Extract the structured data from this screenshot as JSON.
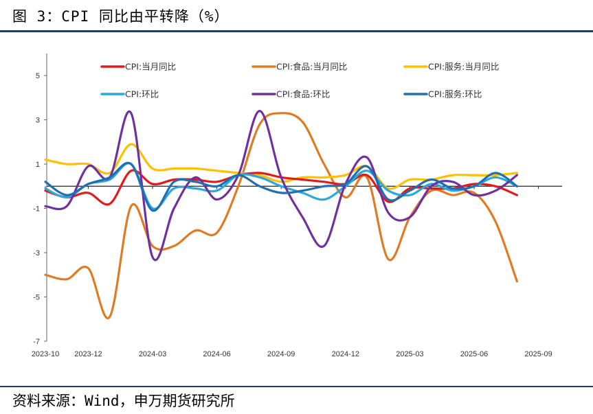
{
  "title": "图 3：CPI 同比由平转降（%）",
  "source": "资料来源：Wind，申万期货研究所",
  "chart_data": {
    "type": "line",
    "title": "图 3：CPI 同比由平转降（%）",
    "xlabel": "",
    "ylabel": "",
    "ylim": [
      -7,
      6
    ],
    "yticks": [
      5,
      3,
      1,
      -1,
      -3,
      -5,
      -7
    ],
    "x_tick_labels": [
      "2023-10",
      "2023-12",
      "2024-03",
      "2024-06",
      "2024-09",
      "2024-12",
      "2025-03",
      "2025-06",
      "2025-09"
    ],
    "x": [
      "2023-10",
      "2023-11",
      "2023-12",
      "2024-01",
      "2024-02",
      "2024-03",
      "2024-04",
      "2024-05",
      "2024-06",
      "2024-07",
      "2024-08",
      "2024-09",
      "2024-10",
      "2024-11",
      "2024-12",
      "2025-01",
      "2025-02",
      "2025-03",
      "2025-04",
      "2025-05",
      "2025-06",
      "2025-07",
      "2025-08"
    ],
    "grid": false,
    "legend_position": "top",
    "series": [
      {
        "name": "CPI:当月同比",
        "color": "#e31a1c",
        "values": [
          -0.2,
          -0.5,
          -0.3,
          -0.8,
          0.7,
          0.1,
          0.3,
          0.3,
          0.2,
          0.5,
          0.6,
          0.4,
          0.3,
          0.2,
          0.1,
          0.5,
          -0.7,
          -0.1,
          -0.1,
          -0.1,
          0.1,
          0.0,
          -0.4
        ]
      },
      {
        "name": "CPI:食品:当月同比",
        "color": "#e07b22",
        "values": [
          -4.0,
          -4.2,
          -3.7,
          -5.9,
          -0.9,
          -2.7,
          -2.7,
          -2.0,
          -2.1,
          0.0,
          2.8,
          3.3,
          2.9,
          1.0,
          -0.5,
          0.4,
          -3.3,
          -1.4,
          -0.2,
          -0.4,
          -0.3,
          -1.6,
          -4.3
        ]
      },
      {
        "name": "CPI:服务:当月同比",
        "color": "#ffc000",
        "values": [
          1.2,
          1.0,
          1.0,
          0.6,
          1.9,
          0.8,
          0.8,
          0.8,
          0.7,
          0.6,
          0.5,
          0.2,
          0.4,
          0.4,
          0.5,
          0.9,
          -0.1,
          0.3,
          0.3,
          0.5,
          0.5,
          0.5,
          0.6
        ]
      },
      {
        "name": "CPI:环比",
        "color": "#2aa9e0",
        "values": [
          -0.1,
          -0.5,
          0.1,
          0.3,
          1.0,
          -1.0,
          -0.1,
          -0.1,
          -0.2,
          0.5,
          0.4,
          0.0,
          -0.3,
          -0.6,
          0.0,
          0.7,
          -0.2,
          -0.4,
          0.1,
          -0.2,
          0.0,
          0.4,
          0.0
        ]
      },
      {
        "name": "CPI:食品:环比",
        "color": "#7030a0",
        "values": [
          -0.9,
          -0.9,
          0.9,
          0.4,
          3.3,
          -3.2,
          -1.0,
          0.4,
          -0.6,
          0.5,
          3.4,
          0.4,
          -1.4,
          -2.7,
          0.1,
          1.3,
          -1.2,
          -1.4,
          0.0,
          0.2,
          -0.4,
          -0.2,
          0.5
        ]
      },
      {
        "name": "CPI:服务:环比",
        "color": "#1f6fb4",
        "values": [
          0.2,
          -0.4,
          0.1,
          0.4,
          1.0,
          -1.1,
          0.2,
          0.2,
          0.0,
          0.5,
          0.0,
          -0.3,
          -0.2,
          0.0,
          0.1,
          0.9,
          -0.6,
          -0.2,
          0.3,
          -0.1,
          0.0,
          0.6,
          0.0
        ]
      }
    ]
  }
}
